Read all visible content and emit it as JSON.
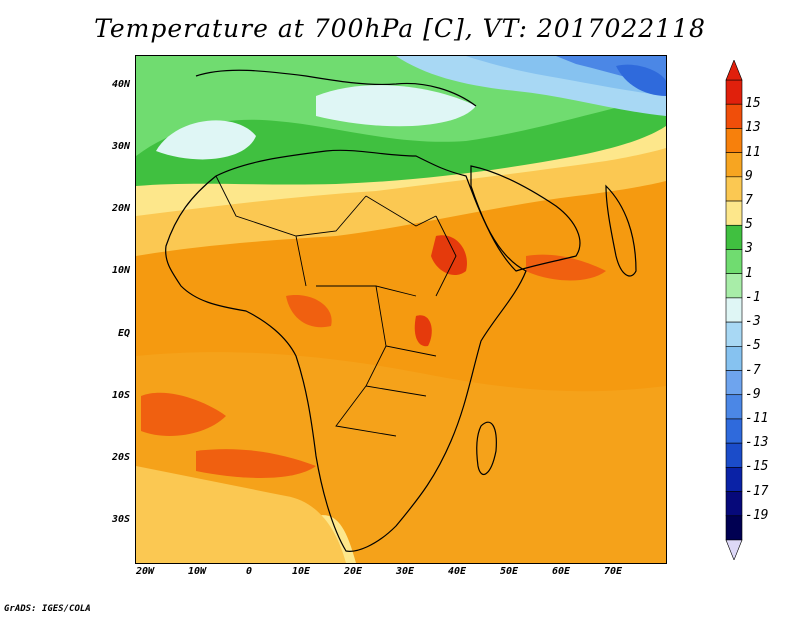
{
  "title": "Temperature at 700hPa [C], VT: 2017022118",
  "credit": "GrADS: IGES/COLA",
  "map": {
    "region": "Africa",
    "lat_labels": [
      "40N",
      "30N",
      "20N",
      "10N",
      "EQ",
      "10S",
      "20S",
      "30S"
    ],
    "lon_labels": [
      "20W",
      "10W",
      "0",
      "10E",
      "20E",
      "30E",
      "40E",
      "50E",
      "60E",
      "70E"
    ]
  },
  "colorbar": {
    "labels": [
      "15",
      "13",
      "11",
      "9",
      "7",
      "5",
      "3",
      "1",
      "-1",
      "-3",
      "-5",
      "-7",
      "-9",
      "-11",
      "-13",
      "-15",
      "-17",
      "-19"
    ],
    "colors": [
      "#e0200c",
      "#f04e0a",
      "#f7800c",
      "#f7a521",
      "#fbc852",
      "#fde78b",
      "#40c040",
      "#70dc70",
      "#a8eda8",
      "#dff6f5",
      "#a8d8f4",
      "#86c2f0",
      "#6ea4ee",
      "#4b87e6",
      "#2f6adc",
      "#1b4cc9",
      "#0a22a6",
      "#06097a",
      "#000052"
    ]
  }
}
